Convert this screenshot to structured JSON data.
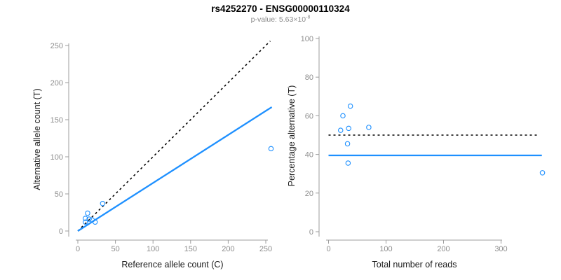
{
  "header": {
    "title": "rs4252270 - ENSG00000110324",
    "pvalue_label": "p-value: ",
    "pvalue_mantissa": "5.63×10",
    "pvalue_exponent": "-8"
  },
  "colors": {
    "accent_blue": "#1E90FF",
    "dashed_black": "#000000",
    "axis_line_gray": "#9c9c9c",
    "tick_label_gray": "#8e8e8e",
    "axis_title_color": "#1a1a1a"
  },
  "chart_data": [
    {
      "id": "allele-counts",
      "type": "scatter",
      "xlabel": "Reference allele count (C)",
      "ylabel": "Alternative allele count (T)",
      "xticks": [
        0,
        50,
        100,
        150,
        200,
        250
      ],
      "yticks": [
        0,
        50,
        100,
        150,
        200,
        250
      ],
      "xlim": [
        0,
        258
      ],
      "ylim": [
        0,
        258
      ],
      "grid": false,
      "legend": false,
      "marker": "open-circle",
      "points": [
        [
          10,
          12
        ],
        [
          10,
          17
        ],
        [
          13,
          24
        ],
        [
          15,
          16
        ],
        [
          19,
          15
        ],
        [
          23,
          12
        ],
        [
          33,
          37
        ],
        [
          257,
          111
        ]
      ],
      "lines": [
        {
          "name": "identity-line",
          "style": "dashed",
          "color": "#000000",
          "from": [
            0,
            0
          ],
          "to": [
            256,
            256
          ]
        },
        {
          "name": "fit-line",
          "style": "solid",
          "color": "#1E90FF",
          "from": [
            0,
            0
          ],
          "to": [
            258,
            167
          ]
        }
      ]
    },
    {
      "id": "percentage-vs-reads",
      "type": "scatter",
      "xlabel": "Total number of reads",
      "ylabel": "Percentage alternative (T)",
      "xticks": [
        0,
        100,
        200,
        300
      ],
      "yticks": [
        0,
        20,
        40,
        60,
        80,
        100
      ],
      "xlim": [
        0,
        375
      ],
      "ylim": [
        0,
        100
      ],
      "grid": false,
      "legend": false,
      "marker": "open-circle",
      "points": [
        [
          21,
          52.5
        ],
        [
          25,
          60
        ],
        [
          33,
          45.5
        ],
        [
          34,
          35.5
        ],
        [
          35,
          53.5
        ],
        [
          38,
          65
        ],
        [
          70,
          54
        ],
        [
          372,
          30.5
        ]
      ],
      "lines": [
        {
          "name": "fifty-percent-line",
          "style": "dashed",
          "color": "#000000",
          "from": [
            0,
            50
          ],
          "to": [
            363,
            50
          ]
        },
        {
          "name": "mean-percentage-line",
          "style": "solid",
          "color": "#1E90FF",
          "from": [
            0,
            39.5
          ],
          "to": [
            371,
            39.5
          ]
        }
      ]
    }
  ]
}
